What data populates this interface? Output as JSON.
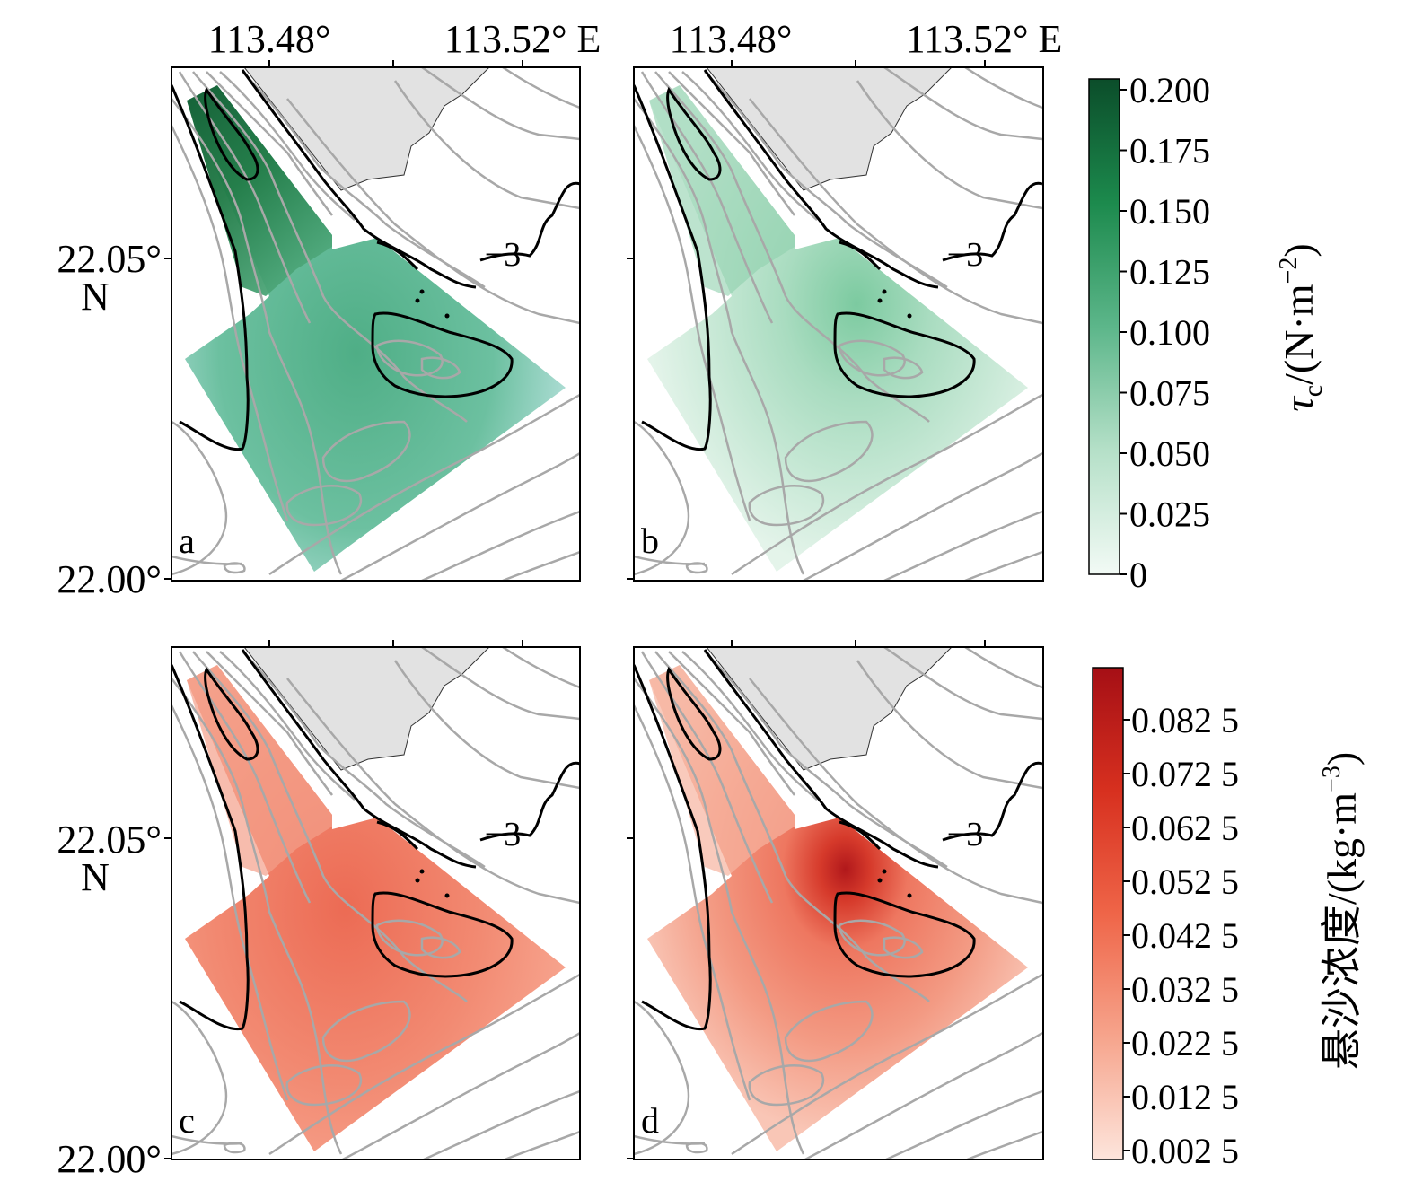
{
  "figure": {
    "longitude_ticks": [
      "113.48°",
      "113.52° E"
    ],
    "latitude_ticks": [
      {
        "value": "22.05°",
        "hemisphere": "N"
      },
      {
        "value": "22.00°",
        "hemisphere": ""
      }
    ],
    "contour_label": "−3",
    "panels": [
      {
        "letter": "a",
        "variable": "tau_c",
        "palette": "green",
        "intensity": 0.62
      },
      {
        "letter": "b",
        "variable": "tau_c",
        "palette": "green",
        "intensity": 0.22
      },
      {
        "letter": "c",
        "variable": "ssc",
        "palette": "red",
        "intensity": 0.55
      },
      {
        "letter": "d",
        "variable": "ssc",
        "palette": "red",
        "intensity": 0.45
      }
    ],
    "colorbars": [
      {
        "title_main": "τ",
        "title_sub": "c",
        "title_rest": "/(N·m",
        "title_sup": "−2",
        "title_end": ")",
        "ticks": [
          "0.200",
          "0.175",
          "0.150",
          "0.125",
          "0.100",
          "0.075",
          "0.050",
          "0.025",
          "0"
        ],
        "color_high": "#0b4d2a",
        "color_low": "#f2faf5"
      },
      {
        "title_main": "悬沙浓度/(kg·m",
        "title_sup": "−3",
        "title_end": ")",
        "ticks": [
          "0.082 5",
          "0.072 5",
          "0.062 5",
          "0.052 5",
          "0.042 5",
          "0.032 5",
          "0.022 5",
          "0.012 5",
          "0.002 5"
        ],
        "color_high": "#a50f15",
        "color_low": "#fde5dc"
      }
    ],
    "colors": {
      "land": "#e2e2e2",
      "contour_gray": "#a8a8a8",
      "contour_black": "#000000",
      "green_region": "#5cb890",
      "green_dark": "#0f6a36",
      "red_region": "#f08a72",
      "red_dark": "#b11a1c"
    }
  }
}
